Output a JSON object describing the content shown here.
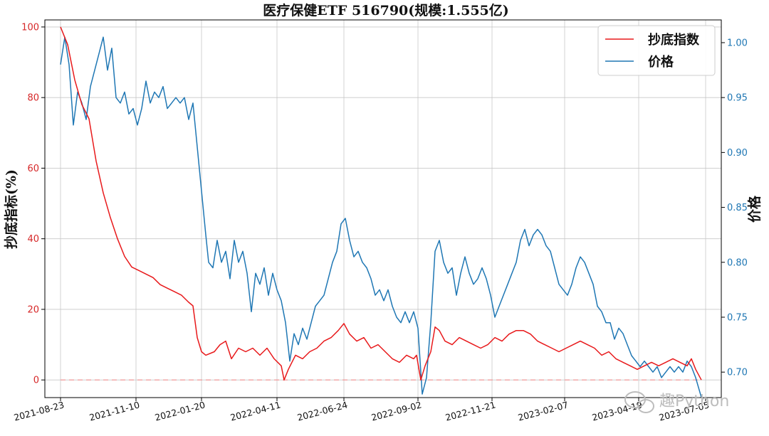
{
  "chart_data": {
    "type": "line",
    "title": "医疗保健ETF  516790(规模:1.555亿)",
    "ylabel_left": "抄底指标(%)",
    "ylabel_right": "价格",
    "ylim_left": [
      -5,
      102
    ],
    "ylim_right": [
      0.6768,
      1.0207
    ],
    "yticks_left": [
      0,
      20,
      40,
      60,
      80,
      100
    ],
    "ytick_labels_left": [
      "0",
      "20",
      "40",
      "60",
      "80",
      "100"
    ],
    "yticks_right": [
      0.7,
      0.75,
      0.8,
      0.85,
      0.9,
      0.95,
      1.0
    ],
    "ytick_labels_right": [
      "0.70",
      "0.75",
      "0.80",
      "0.85",
      "0.90",
      "0.95",
      "1.00"
    ],
    "xlim": [
      -11,
      464
    ],
    "xticks": [
      0,
      53,
      99,
      152,
      199,
      251,
      303,
      354,
      406,
      453
    ],
    "xtick_labels": [
      "2021-08-23",
      "2021-11-10",
      "2022-01-20",
      "2022-04-11",
      "2022-06-24",
      "2022-09-02",
      "2022-11-21",
      "2023-02-07",
      "2023-04-19",
      "2023-07-05"
    ],
    "grid": true,
    "legend_position": "top-right",
    "reference_line": {
      "y": 0,
      "axis": "left",
      "style": "dashed",
      "color": "#f2a0a0"
    },
    "colors": {
      "indicator": "#e8191b",
      "price": "#1f77b4",
      "grid": "#c8c8c8",
      "axis": "#000000",
      "ref": "#f2a0a0"
    },
    "series": [
      {
        "name": "抄底指数",
        "axis": "left",
        "color": "#e8191b",
        "points": [
          [
            0,
            100
          ],
          [
            5,
            95
          ],
          [
            10,
            85
          ],
          [
            15,
            78
          ],
          [
            20,
            74
          ],
          [
            25,
            62
          ],
          [
            30,
            53
          ],
          [
            35,
            46
          ],
          [
            40,
            40
          ],
          [
            45,
            35
          ],
          [
            50,
            32
          ],
          [
            55,
            31
          ],
          [
            60,
            30
          ],
          [
            65,
            29
          ],
          [
            70,
            27
          ],
          [
            75,
            26
          ],
          [
            80,
            25
          ],
          [
            85,
            24
          ],
          [
            90,
            22
          ],
          [
            93,
            21
          ],
          [
            96,
            12
          ],
          [
            99,
            8
          ],
          [
            102,
            7
          ],
          [
            108,
            8
          ],
          [
            112,
            10
          ],
          [
            116,
            11
          ],
          [
            120,
            6
          ],
          [
            125,
            9
          ],
          [
            130,
            8
          ],
          [
            135,
            9
          ],
          [
            140,
            7
          ],
          [
            145,
            9
          ],
          [
            150,
            6
          ],
          [
            155,
            4
          ],
          [
            157,
            0
          ],
          [
            160,
            3
          ],
          [
            165,
            7
          ],
          [
            170,
            6
          ],
          [
            175,
            8
          ],
          [
            180,
            9
          ],
          [
            185,
            11
          ],
          [
            190,
            12
          ],
          [
            195,
            14
          ],
          [
            199,
            16
          ],
          [
            203,
            13
          ],
          [
            208,
            11
          ],
          [
            213,
            12
          ],
          [
            218,
            9
          ],
          [
            223,
            10
          ],
          [
            228,
            8
          ],
          [
            233,
            6
          ],
          [
            238,
            5
          ],
          [
            243,
            7
          ],
          [
            248,
            6
          ],
          [
            250,
            7
          ],
          [
            253,
            0
          ],
          [
            256,
            4
          ],
          [
            260,
            8
          ],
          [
            263,
            15
          ],
          [
            266,
            14
          ],
          [
            270,
            11
          ],
          [
            275,
            10
          ],
          [
            280,
            12
          ],
          [
            285,
            11
          ],
          [
            290,
            10
          ],
          [
            295,
            9
          ],
          [
            300,
            10
          ],
          [
            305,
            12
          ],
          [
            310,
            11
          ],
          [
            315,
            13
          ],
          [
            320,
            14
          ],
          [
            325,
            14
          ],
          [
            330,
            13
          ],
          [
            335,
            11
          ],
          [
            340,
            10
          ],
          [
            345,
            9
          ],
          [
            350,
            8
          ],
          [
            355,
            9
          ],
          [
            360,
            10
          ],
          [
            365,
            11
          ],
          [
            370,
            10
          ],
          [
            375,
            9
          ],
          [
            380,
            7
          ],
          [
            385,
            8
          ],
          [
            390,
            6
          ],
          [
            395,
            5
          ],
          [
            400,
            4
          ],
          [
            405,
            3
          ],
          [
            410,
            4
          ],
          [
            415,
            5
          ],
          [
            420,
            4
          ],
          [
            425,
            5
          ],
          [
            430,
            6
          ],
          [
            435,
            5
          ],
          [
            440,
            4
          ],
          [
            443,
            6
          ],
          [
            446,
            3
          ],
          [
            450,
            0
          ]
        ]
      },
      {
        "name": "价格",
        "axis": "right",
        "color": "#1f77b4",
        "points": [
          [
            0,
            0.98
          ],
          [
            3,
            1.005
          ],
          [
            6,
            0.98
          ],
          [
            9,
            0.925
          ],
          [
            12,
            0.955
          ],
          [
            15,
            0.945
          ],
          [
            18,
            0.93
          ],
          [
            21,
            0.96
          ],
          [
            24,
            0.975
          ],
          [
            27,
            0.99
          ],
          [
            30,
            1.005
          ],
          [
            33,
            0.975
          ],
          [
            36,
            0.995
          ],
          [
            39,
            0.95
          ],
          [
            42,
            0.945
          ],
          [
            45,
            0.955
          ],
          [
            48,
            0.935
          ],
          [
            51,
            0.94
          ],
          [
            54,
            0.925
          ],
          [
            57,
            0.94
          ],
          [
            60,
            0.965
          ],
          [
            63,
            0.945
          ],
          [
            66,
            0.955
          ],
          [
            69,
            0.95
          ],
          [
            72,
            0.96
          ],
          [
            75,
            0.94
          ],
          [
            78,
            0.945
          ],
          [
            81,
            0.95
          ],
          [
            84,
            0.945
          ],
          [
            87,
            0.95
          ],
          [
            90,
            0.93
          ],
          [
            93,
            0.945
          ],
          [
            96,
            0.905
          ],
          [
            99,
            0.865
          ],
          [
            102,
            0.825
          ],
          [
            104,
            0.8
          ],
          [
            107,
            0.795
          ],
          [
            110,
            0.82
          ],
          [
            113,
            0.8
          ],
          [
            116,
            0.81
          ],
          [
            119,
            0.785
          ],
          [
            122,
            0.82
          ],
          [
            125,
            0.8
          ],
          [
            128,
            0.81
          ],
          [
            131,
            0.79
          ],
          [
            134,
            0.755
          ],
          [
            137,
            0.79
          ],
          [
            140,
            0.78
          ],
          [
            143,
            0.795
          ],
          [
            146,
            0.77
          ],
          [
            149,
            0.79
          ],
          [
            152,
            0.775
          ],
          [
            155,
            0.765
          ],
          [
            158,
            0.745
          ],
          [
            161,
            0.71
          ],
          [
            164,
            0.735
          ],
          [
            167,
            0.725
          ],
          [
            170,
            0.74
          ],
          [
            173,
            0.73
          ],
          [
            176,
            0.745
          ],
          [
            179,
            0.76
          ],
          [
            182,
            0.765
          ],
          [
            185,
            0.77
          ],
          [
            188,
            0.785
          ],
          [
            191,
            0.8
          ],
          [
            194,
            0.81
          ],
          [
            197,
            0.835
          ],
          [
            200,
            0.84
          ],
          [
            203,
            0.82
          ],
          [
            206,
            0.805
          ],
          [
            209,
            0.81
          ],
          [
            212,
            0.8
          ],
          [
            215,
            0.795
          ],
          [
            218,
            0.785
          ],
          [
            221,
            0.77
          ],
          [
            224,
            0.775
          ],
          [
            227,
            0.765
          ],
          [
            230,
            0.775
          ],
          [
            233,
            0.76
          ],
          [
            236,
            0.75
          ],
          [
            239,
            0.745
          ],
          [
            242,
            0.755
          ],
          [
            245,
            0.745
          ],
          [
            248,
            0.755
          ],
          [
            251,
            0.74
          ],
          [
            254,
            0.68
          ],
          [
            257,
            0.695
          ],
          [
            260,
            0.745
          ],
          [
            263,
            0.81
          ],
          [
            266,
            0.82
          ],
          [
            269,
            0.8
          ],
          [
            272,
            0.79
          ],
          [
            275,
            0.795
          ],
          [
            278,
            0.77
          ],
          [
            281,
            0.79
          ],
          [
            284,
            0.805
          ],
          [
            287,
            0.79
          ],
          [
            290,
            0.78
          ],
          [
            293,
            0.785
          ],
          [
            296,
            0.795
          ],
          [
            299,
            0.785
          ],
          [
            302,
            0.77
          ],
          [
            305,
            0.75
          ],
          [
            308,
            0.76
          ],
          [
            311,
            0.77
          ],
          [
            314,
            0.78
          ],
          [
            317,
            0.79
          ],
          [
            320,
            0.8
          ],
          [
            323,
            0.82
          ],
          [
            326,
            0.83
          ],
          [
            329,
            0.815
          ],
          [
            332,
            0.825
          ],
          [
            335,
            0.83
          ],
          [
            338,
            0.825
          ],
          [
            341,
            0.815
          ],
          [
            344,
            0.81
          ],
          [
            347,
            0.795
          ],
          [
            350,
            0.78
          ],
          [
            353,
            0.775
          ],
          [
            356,
            0.77
          ],
          [
            359,
            0.78
          ],
          [
            362,
            0.795
          ],
          [
            365,
            0.805
          ],
          [
            368,
            0.8
          ],
          [
            371,
            0.79
          ],
          [
            374,
            0.78
          ],
          [
            377,
            0.76
          ],
          [
            380,
            0.755
          ],
          [
            383,
            0.745
          ],
          [
            386,
            0.745
          ],
          [
            389,
            0.73
          ],
          [
            392,
            0.74
          ],
          [
            395,
            0.735
          ],
          [
            398,
            0.725
          ],
          [
            401,
            0.715
          ],
          [
            404,
            0.71
          ],
          [
            407,
            0.705
          ],
          [
            410,
            0.71
          ],
          [
            413,
            0.705
          ],
          [
            416,
            0.7
          ],
          [
            419,
            0.705
          ],
          [
            422,
            0.695
          ],
          [
            425,
            0.7
          ],
          [
            428,
            0.705
          ],
          [
            431,
            0.7
          ],
          [
            434,
            0.705
          ],
          [
            437,
            0.7
          ],
          [
            440,
            0.71
          ],
          [
            443,
            0.705
          ],
          [
            446,
            0.695
          ],
          [
            450,
            0.677
          ]
        ]
      }
    ]
  },
  "watermark": {
    "text": "趣Python"
  }
}
